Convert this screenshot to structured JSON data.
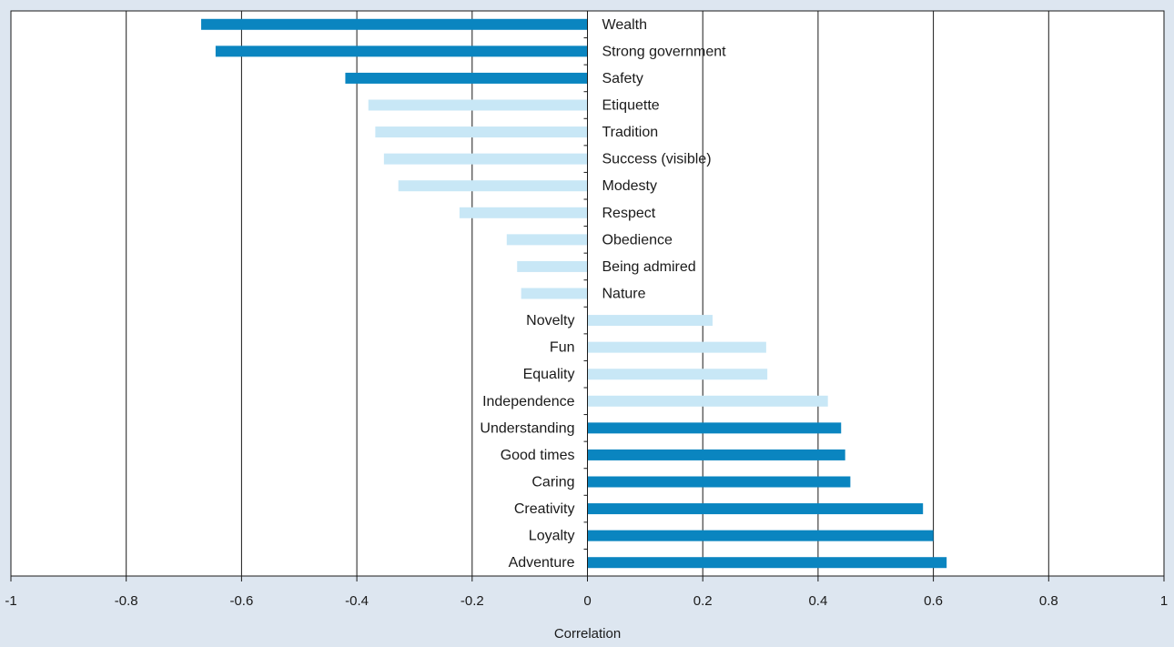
{
  "colors": {
    "page_background": "#dde6f0",
    "plot_background": "#ffffff",
    "bar_dark": "#0a85c0",
    "bar_light": "#c8e7f6",
    "gridline": "#1a1a1a"
  },
  "chart_data": {
    "type": "bar",
    "orientation": "horizontal",
    "title": "",
    "xlabel": "Correlation",
    "ylabel": "",
    "xlim": [
      -1,
      1
    ],
    "xticks": [
      -1,
      -0.8,
      -0.6,
      -0.4,
      -0.2,
      0,
      0.2,
      0.4,
      0.6,
      0.8,
      1
    ],
    "xtick_labels": [
      "-1",
      "-0.8",
      "-0.6",
      "-0.4",
      "-0.2",
      "0",
      "0.2",
      "0.4",
      "0.6",
      "0.8",
      "1"
    ],
    "grid": "vertical",
    "legend": "none",
    "categories": [
      "Wealth",
      "Strong government",
      "Safety",
      "Etiquette",
      "Tradition",
      "Success (visible)",
      "Modesty",
      "Respect",
      "Obedience",
      "Being admired",
      "Nature",
      "Novelty",
      "Fun",
      "Equality",
      "Independence",
      "Understanding",
      "Good times",
      "Caring",
      "Creativity",
      "Loyalty",
      "Adventure"
    ],
    "values": [
      -0.67,
      -0.645,
      -0.42,
      -0.38,
      -0.368,
      -0.353,
      -0.328,
      -0.222,
      -0.14,
      -0.122,
      -0.115,
      0.217,
      0.31,
      0.312,
      0.417,
      0.44,
      0.447,
      0.456,
      0.582,
      0.6,
      0.623
    ],
    "emphasis": [
      "dark",
      "dark",
      "dark",
      "light",
      "light",
      "light",
      "light",
      "light",
      "light",
      "light",
      "light",
      "light",
      "light",
      "light",
      "light",
      "dark",
      "dark",
      "dark",
      "dark",
      "dark",
      "dark"
    ]
  }
}
